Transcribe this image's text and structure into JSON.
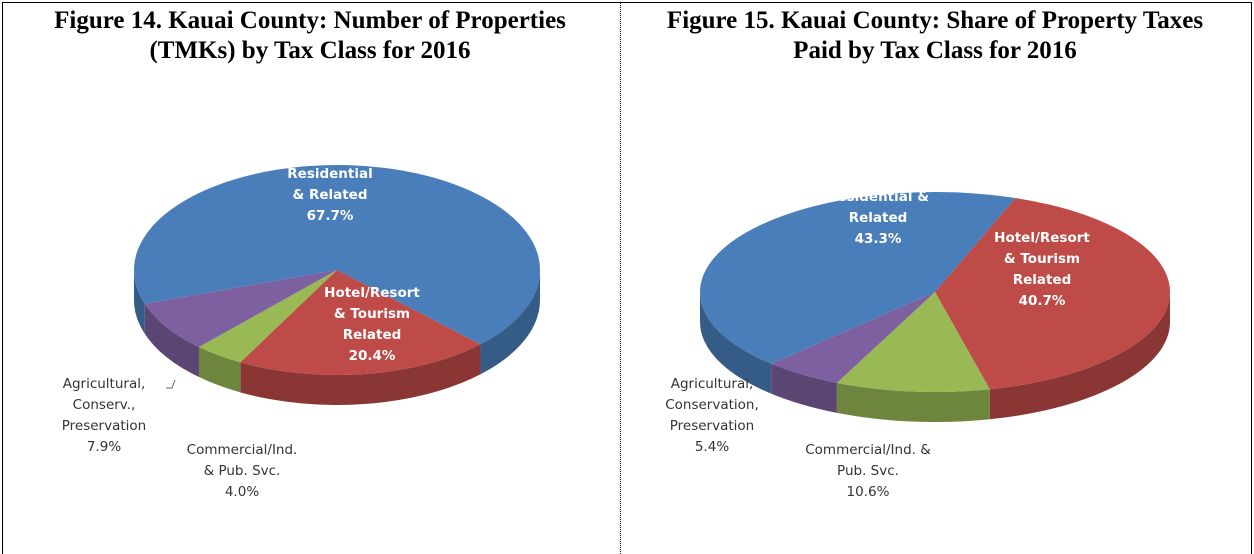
{
  "chart_data": [
    {
      "type": "pie",
      "title": "Figure 14.  Kauai County: Number of Properties (TMKs) by Tax Class for 2016",
      "categories": [
        "Hotel/Resort\n& Tourism\nRelated",
        "Commercial/Ind.\n& Pub. Svc.",
        "Agricultural,\nConserv.,\nPreservation",
        "Residential\n& Related"
      ],
      "values": [
        20.4,
        4.0,
        7.9,
        67.7
      ],
      "value_labels": [
        "20.4%",
        "4.0%",
        "7.9%",
        "67.7%"
      ],
      "colors": [
        "#be4b48",
        "#98b954",
        "#7d60a0",
        "#4a7ebb"
      ]
    },
    {
      "type": "pie",
      "title": "Figure 15.  Kauai County: Share of Property Taxes Paid by Tax Class for 2016",
      "categories": [
        "Hotel/Resort\n& Tourism\nRelated",
        "Commercial/Ind. &\nPub. Svc.",
        "Agricultural,\nConservation,\nPreservation",
        "Residential &\nRelated"
      ],
      "values": [
        40.7,
        10.6,
        5.4,
        43.3
      ],
      "value_labels": [
        "40.7%",
        "10.6%",
        "5.4%",
        "43.3%"
      ],
      "colors": [
        "#be4b48",
        "#98b954",
        "#7d60a0",
        "#4a7ebb"
      ]
    }
  ]
}
